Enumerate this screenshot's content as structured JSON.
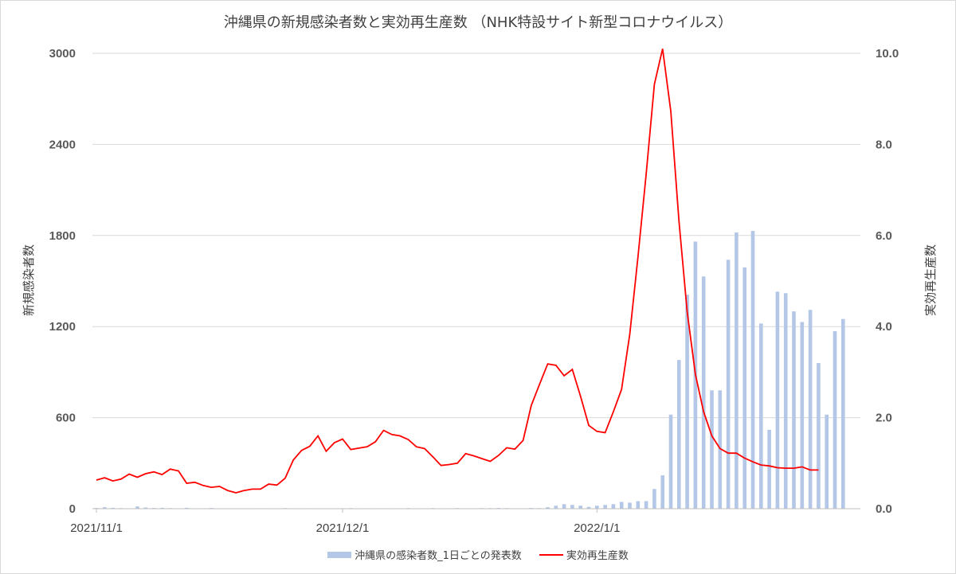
{
  "chart_data": {
    "type": "bar+line",
    "title": "沖縄県の新規感染者数と実効再生産数 （NHK特設サイト新型コロナウイルス）",
    "ylabel_left": "新規感染者数",
    "ylabel_right": "実効再生産数",
    "ylim_left": [
      0,
      3000
    ],
    "ylim_right": [
      0,
      10
    ],
    "yticks_left": [
      "0",
      "600",
      "1200",
      "1800",
      "2400",
      "3000"
    ],
    "yticks_right": [
      "0.0",
      "2.0",
      "4.0",
      "6.0",
      "8.0",
      "10.0"
    ],
    "xticks": [
      {
        "label": "2021/11/1",
        "day": 0
      },
      {
        "label": "2021/12/1",
        "day": 30
      },
      {
        "label": "2022/1/1",
        "day": 61
      }
    ],
    "grid": true,
    "legend_position": "bottom",
    "colors": {
      "cases": "#b4c7e7",
      "rt": "#ff0000",
      "grid": "#d9d9d9"
    },
    "series": [
      {
        "name": "沖縄県の感染者数_1日ごとの発表数",
        "kind": "bar",
        "axis": "left",
        "values": [
          5,
          10,
          6,
          4,
          3,
          15,
          8,
          5,
          6,
          4,
          3,
          6,
          2,
          3,
          5,
          2,
          1,
          2,
          0,
          2,
          3,
          1,
          2,
          4,
          2,
          1,
          3,
          1,
          1,
          2,
          3,
          4,
          2,
          3,
          2,
          3,
          2,
          3,
          4,
          2,
          3,
          4,
          2,
          3,
          4,
          3,
          3,
          4,
          4,
          5,
          4,
          3,
          3,
          5,
          4,
          10,
          20,
          30,
          25,
          20,
          12,
          20,
          25,
          30,
          45,
          40,
          50,
          50,
          130,
          220,
          620,
          980,
          1410,
          1760,
          1530,
          780,
          780,
          1640,
          1820,
          1590,
          1830,
          1220,
          520,
          1430,
          1420,
          1300,
          1230,
          1310,
          960,
          620,
          1170,
          1250
        ]
      },
      {
        "name": "実効再生産数",
        "kind": "line",
        "axis": "right",
        "values": [
          0.63,
          0.68,
          0.61,
          0.65,
          0.76,
          0.69,
          0.77,
          0.81,
          0.75,
          0.87,
          0.83,
          0.56,
          0.58,
          0.51,
          0.47,
          0.49,
          0.4,
          0.35,
          0.4,
          0.43,
          0.43,
          0.54,
          0.52,
          0.67,
          1.07,
          1.28,
          1.37,
          1.6,
          1.26,
          1.45,
          1.53,
          1.3,
          1.33,
          1.36,
          1.47,
          1.72,
          1.63,
          1.6,
          1.52,
          1.36,
          1.32,
          1.14,
          0.95,
          0.97,
          1.0,
          1.21,
          1.16,
          1.1,
          1.04,
          1.17,
          1.34,
          1.31,
          1.5,
          2.27,
          2.73,
          3.18,
          3.15,
          2.92,
          3.06,
          2.47,
          1.83,
          1.7,
          1.67,
          2.13,
          2.62,
          3.83,
          5.53,
          7.35,
          9.32,
          10.1,
          8.73,
          6.31,
          4.32,
          2.95,
          2.13,
          1.6,
          1.32,
          1.22,
          1.22,
          1.11,
          1.03,
          0.96,
          0.94,
          0.9,
          0.89,
          0.89,
          0.92,
          0.85,
          0.85
        ]
      }
    ]
  }
}
